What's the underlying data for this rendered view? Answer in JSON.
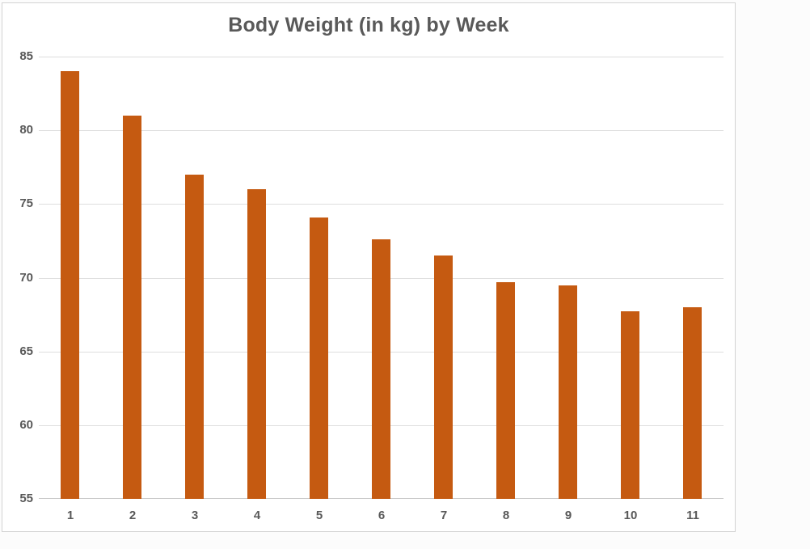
{
  "chart_data": {
    "type": "bar",
    "title": "Body Weight (in kg) by Week",
    "xlabel": "",
    "ylabel": "",
    "categories": [
      "1",
      "2",
      "3",
      "4",
      "5",
      "6",
      "7",
      "8",
      "9",
      "10",
      "11"
    ],
    "values": [
      84,
      81,
      77,
      76,
      74.1,
      72.6,
      71.5,
      69.7,
      69.5,
      67.7,
      68
    ],
    "series_name": "Body Weight (in kg)",
    "ylim": [
      55,
      85
    ],
    "yticks": [
      85,
      80,
      75,
      70,
      65,
      60,
      55
    ],
    "grid": true,
    "legend": false,
    "colors": {
      "bar": "#C55A11",
      "text": "#595959",
      "gridline": "#DEDEDE",
      "axis_line": "#C9C9C9",
      "panel_border": "#D3D3D3",
      "panel_background": "#FFFFFF",
      "page_background": "#FCFCFC"
    }
  }
}
